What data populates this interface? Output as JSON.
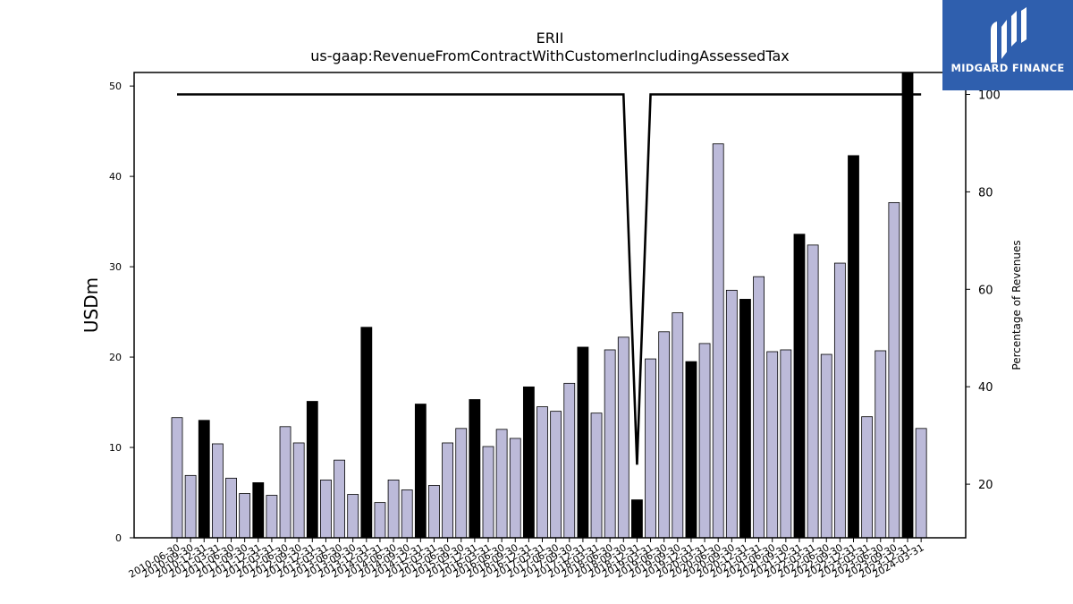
{
  "logo": {
    "brand": "MIDGARD FINANCE",
    "icon": "midgard-logo-icon",
    "background": "#2f5fae"
  },
  "chart_data": {
    "type": "bar",
    "title": "ERII",
    "subtitle": "us-gaap:RevenueFromContractWithCustomerIncludingAssessedTax",
    "ylabel": "USDm",
    "ylabel_right": "Percentage of Revenues",
    "ylim": [
      0,
      51.5
    ],
    "ylim_right": [
      9,
      104.5
    ],
    "yticks": [
      0,
      10,
      20,
      30,
      40,
      50
    ],
    "yticks_right": [
      20,
      40,
      60,
      80,
      100
    ],
    "bar_color": "#bcbad9",
    "highlight_color": "#000000",
    "categories": [
      "2010-06-30",
      "2010-09-30",
      "2010-12-31",
      "2011-03-31",
      "2011-06-30",
      "2011-09-30",
      "2011-12-31",
      "2012-03-31",
      "2012-06-30",
      "2012-09-30",
      "2012-12-31",
      "2013-03-31",
      "2013-06-30",
      "2013-09-30",
      "2013-12-31",
      "2014-03-31",
      "2014-06-30",
      "2014-09-30",
      "2014-12-31",
      "2015-03-31",
      "2015-06-30",
      "2015-09-30",
      "2015-12-31",
      "2016-03-31",
      "2016-06-30",
      "2016-09-30",
      "2016-12-31",
      "2017-03-31",
      "2017-06-30",
      "2017-09-30",
      "2017-12-31",
      "2018-03-31",
      "2018-06-30",
      "2018-09-30",
      "2018-12-31",
      "2019-03-31",
      "2019-06-30",
      "2019-09-30",
      "2019-12-31",
      "2020-03-31",
      "2020-06-30",
      "2020-09-30",
      "2020-12-31",
      "2021-03-31",
      "2021-06-30",
      "2021-09-30",
      "2021-12-31",
      "2022-03-31",
      "2022-06-30",
      "2022-09-30",
      "2022-12-31",
      "2023-03-31",
      "2023-06-30",
      "2023-09-30",
      "2023-12-31",
      "2024-03-31"
    ],
    "values": [
      13.3,
      6.9,
      13.0,
      10.4,
      6.6,
      4.9,
      6.1,
      4.7,
      12.3,
      10.5,
      15.1,
      6.4,
      8.6,
      4.8,
      23.3,
      3.9,
      6.4,
      5.3,
      14.8,
      5.8,
      10.5,
      12.1,
      15.3,
      10.1,
      12.0,
      11.0,
      16.7,
      14.5,
      14.0,
      17.1,
      21.1,
      13.8,
      20.8,
      22.2,
      4.2,
      19.8,
      22.8,
      24.9,
      19.5,
      21.5,
      43.6,
      27.4,
      26.4,
      28.9,
      20.6,
      20.8,
      33.6,
      32.4,
      20.3,
      30.4,
      42.3,
      13.4,
      20.7,
      37.1,
      51.5,
      12.1
    ],
    "highlight": [
      false,
      false,
      true,
      false,
      false,
      false,
      true,
      false,
      false,
      false,
      true,
      false,
      false,
      false,
      true,
      false,
      false,
      false,
      true,
      false,
      false,
      false,
      true,
      false,
      false,
      false,
      true,
      false,
      false,
      false,
      true,
      false,
      false,
      false,
      true,
      false,
      false,
      false,
      true,
      false,
      false,
      false,
      true,
      false,
      false,
      false,
      true,
      false,
      false,
      false,
      true,
      false,
      false,
      false,
      true,
      false
    ],
    "line_series": {
      "name": "Percentage of Revenues",
      "values": [
        100,
        100,
        100,
        100,
        100,
        100,
        100,
        100,
        100,
        100,
        100,
        100,
        100,
        100,
        100,
        100,
        100,
        100,
        100,
        100,
        100,
        100,
        100,
        100,
        100,
        100,
        100,
        100,
        100,
        100,
        100,
        100,
        100,
        100,
        24,
        100,
        100,
        100,
        100,
        100,
        100,
        100,
        100,
        100,
        100,
        100,
        100,
        100,
        100,
        100,
        100,
        100,
        100,
        100,
        100,
        100
      ]
    }
  }
}
